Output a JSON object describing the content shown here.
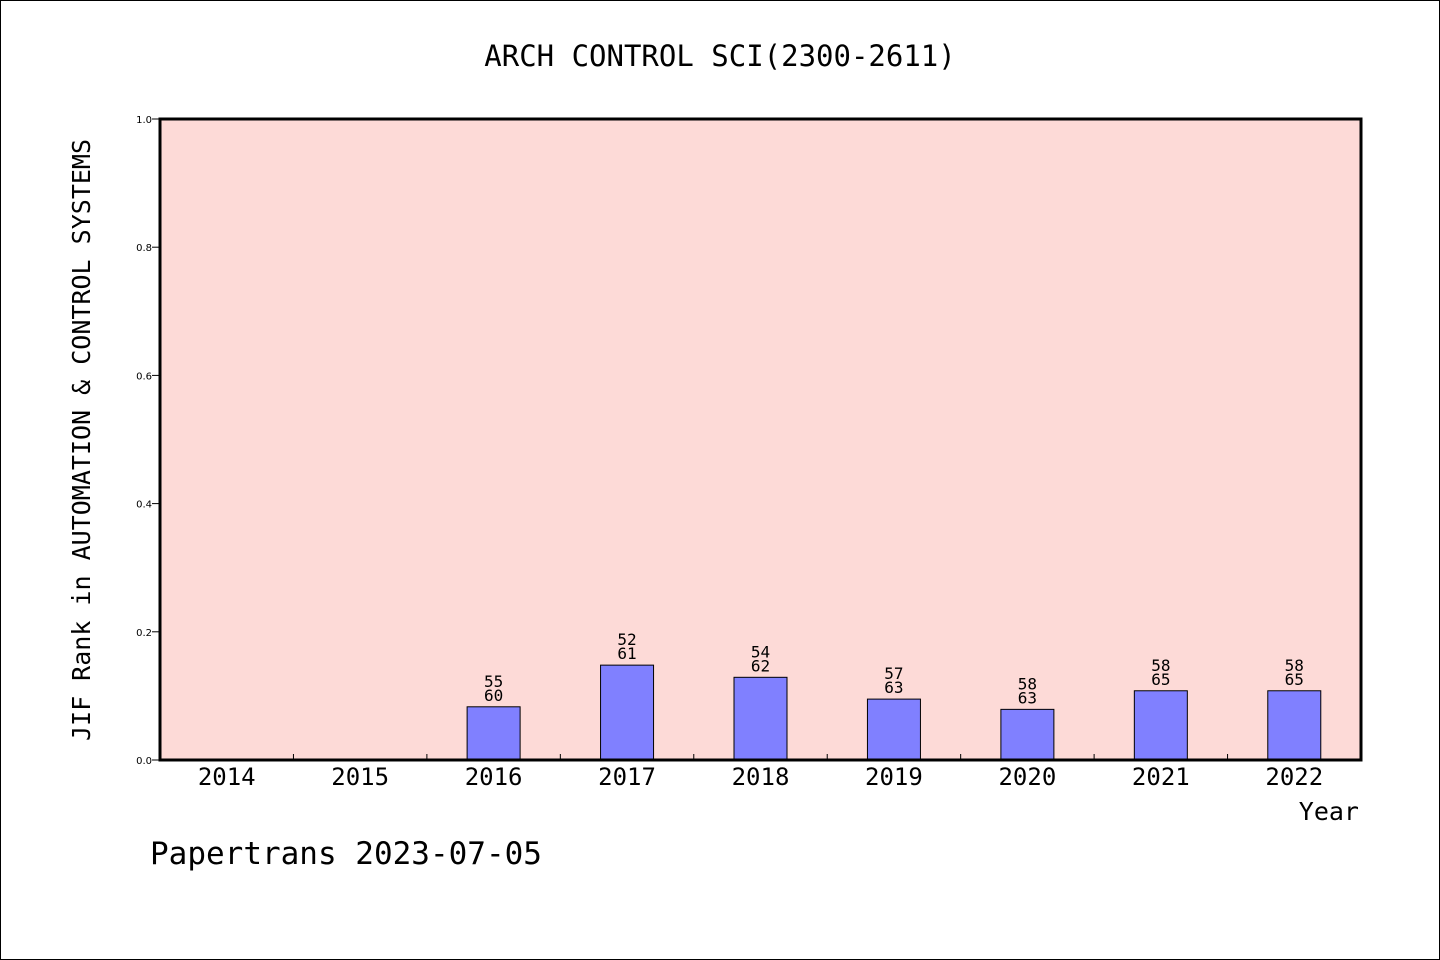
{
  "chart_data": {
    "type": "bar",
    "title": "ARCH CONTROL SCI(2300-2611)",
    "xlabel": "Year",
    "ylabel": "JIF Rank in AUTOMATION & CONTROL SYSTEMS",
    "ylim": [
      0,
      1.0
    ],
    "yticks": [
      "0.0",
      "0.2",
      "0.4",
      "0.6",
      "0.8",
      "1.0"
    ],
    "categories": [
      "2014",
      "2015",
      "2016",
      "2017",
      "2018",
      "2019",
      "2020",
      "2021",
      "2022"
    ],
    "values": [
      0,
      0,
      0.083,
      0.148,
      0.129,
      0.095,
      0.079,
      0.108,
      0.108
    ],
    "labels": [
      null,
      null,
      {
        "rank": "55",
        "total": "60"
      },
      {
        "rank": "52",
        "total": "61"
      },
      {
        "rank": "54",
        "total": "62"
      },
      {
        "rank": "57",
        "total": "63"
      },
      {
        "rank": "58",
        "total": "63"
      },
      {
        "rank": "58",
        "total": "65"
      },
      {
        "rank": "58",
        "total": "65"
      }
    ],
    "grid": false,
    "colors": {
      "plot_background": "#fddad7",
      "bar_fill": "#8080ff",
      "bar_stroke": "#000000"
    }
  },
  "footer": {
    "source": "Papertrans 2023-07-05"
  }
}
